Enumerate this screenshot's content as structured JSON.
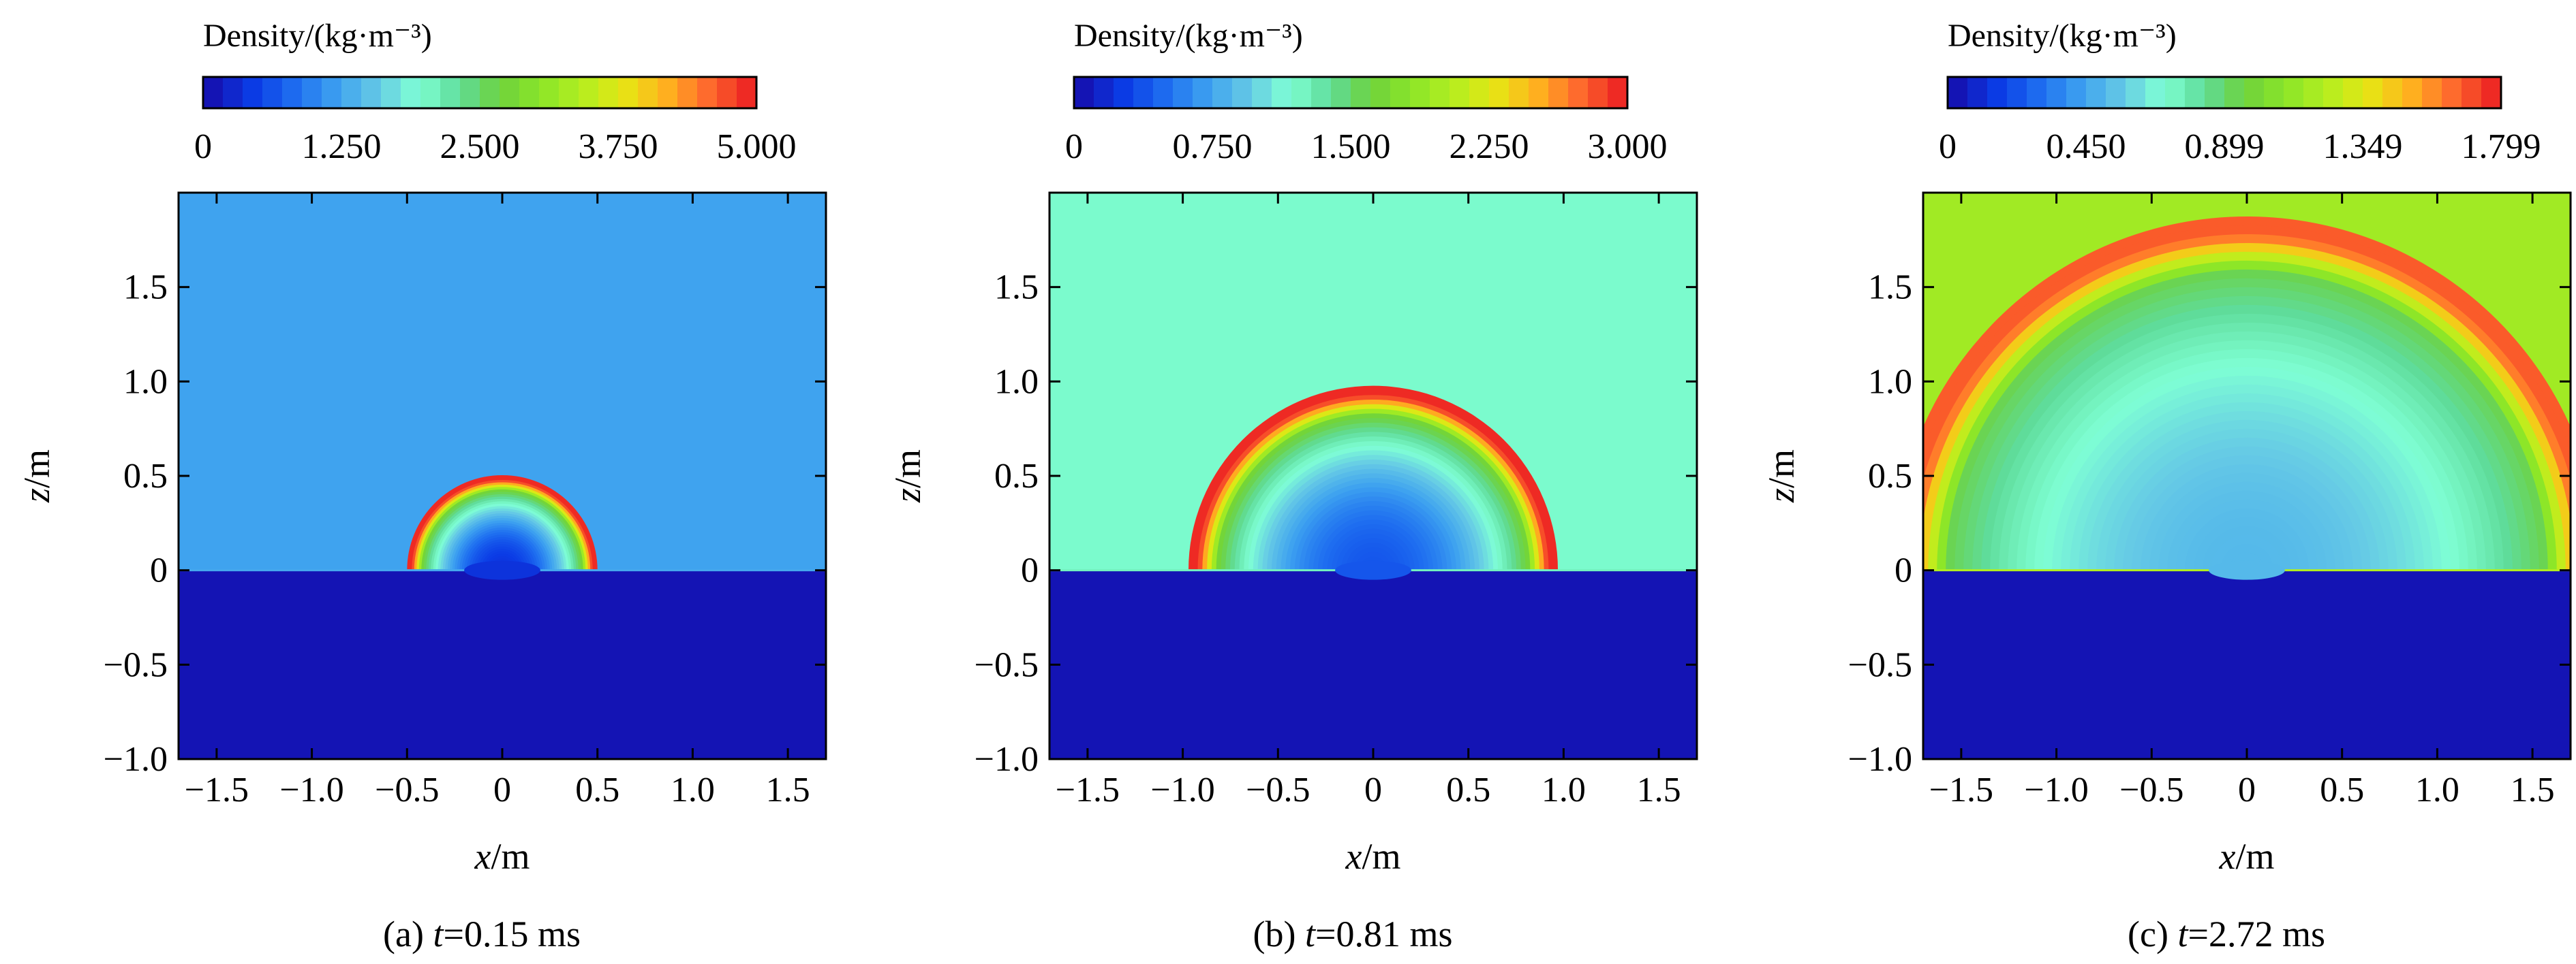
{
  "chart_data": [
    {
      "type": "heatmap",
      "colorbar_title": "Density/(kg·m⁻³)",
      "colorbar_ticks": [
        "0",
        "1.250",
        "2.500",
        "3.750",
        "5.000"
      ],
      "colorbar_range": [
        0,
        5
      ],
      "xlabel_var": "x",
      "xlabel_unit": "/m",
      "ylabel_var": "z",
      "ylabel_unit": "/m",
      "xlim": [
        -1.7,
        1.7
      ],
      "ylim": [
        -1.0,
        2.0
      ],
      "xticks": [
        -1.5,
        -1.0,
        -0.5,
        0,
        0.5,
        1.0,
        1.5
      ],
      "xtick_labels": [
        "−1.5",
        "−1.0",
        "−0.5",
        "0",
        "0.5",
        "1.0",
        "1.5"
      ],
      "yticks": [
        -1.0,
        -0.5,
        0,
        0.5,
        1.0,
        1.5
      ],
      "ytick_labels": [
        "−1.0",
        "−0.5",
        "0",
        "0.5",
        "1.0",
        "1.5"
      ],
      "caption_prefix": "(a) ",
      "caption_var": "t",
      "caption_value": "=0.15 ms",
      "background_density": 1.18,
      "ground_density": 0,
      "shock_front_radius": 0.5,
      "shock_front_density": 5.0,
      "inner_density": 0.3
    },
    {
      "type": "heatmap",
      "colorbar_title": "Density/(kg·m⁻³)",
      "colorbar_ticks": [
        "0",
        "0.750",
        "1.500",
        "2.250",
        "3.000"
      ],
      "colorbar_range": [
        0,
        3
      ],
      "xlabel_var": "x",
      "xlabel_unit": "/m",
      "ylabel_var": "z",
      "ylabel_unit": "/m",
      "xlim": [
        -1.7,
        1.7
      ],
      "ylim": [
        -1.0,
        2.0
      ],
      "xticks": [
        -1.5,
        -1.0,
        -0.5,
        0,
        0.5,
        1.0,
        1.5
      ],
      "xtick_labels": [
        "−1.5",
        "−1.0",
        "−0.5",
        "0",
        "0.5",
        "1.0",
        "1.5"
      ],
      "yticks": [
        -1.0,
        -0.5,
        0,
        0.5,
        1.0,
        1.5
      ],
      "ytick_labels": [
        "−1.0",
        "−0.5",
        "0",
        "0.5",
        "1.0",
        "1.5"
      ],
      "caption_prefix": "(b) ",
      "caption_var": "t",
      "caption_value": "=0.81 ms",
      "background_density": 1.18,
      "ground_density": 0,
      "shock_front_radius": 0.97,
      "shock_front_density": 3.0,
      "inner_density": 0.35
    },
    {
      "type": "heatmap",
      "colorbar_title": "Density/(kg·m⁻³)",
      "colorbar_ticks": [
        "0",
        "0.450",
        "0.899",
        "1.349",
        "1.799"
      ],
      "colorbar_range": [
        0,
        1.799
      ],
      "xlabel_var": "x",
      "xlabel_unit": "/m",
      "ylabel_var": "z",
      "ylabel_unit": "/m",
      "xlim": [
        -1.7,
        1.7
      ],
      "ylim": [
        -1.0,
        2.0
      ],
      "xticks": [
        -1.5,
        -1.0,
        -0.5,
        0,
        0.5,
        1.0,
        1.5
      ],
      "xtick_labels": [
        "−1.5",
        "−1.0",
        "−0.5",
        "0",
        "0.5",
        "1.0",
        "1.5"
      ],
      "yticks": [
        -1.0,
        -0.5,
        0,
        0.5,
        1.0,
        1.5
      ],
      "ytick_labels": [
        "−1.0",
        "−0.5",
        "0",
        "0.5",
        "1.0",
        "1.5"
      ],
      "caption_prefix": "(c) ",
      "caption_var": "t",
      "caption_value": "=2.72 ms",
      "background_density": 1.18,
      "ground_density": 0,
      "shock_front_radius": 1.86,
      "shock_front_density": 1.7,
      "inner_density": 0.5
    }
  ],
  "colormap": [
    "#1414b4",
    "#0b3ce6",
    "#1e6ef0",
    "#3ca0f0",
    "#64c8e6",
    "#7fffd4",
    "#5fdc9a",
    "#6ed23c",
    "#8ce628",
    "#b4ee20",
    "#e6e614",
    "#ffb41e",
    "#ff6e2d",
    "#ee2a24"
  ]
}
